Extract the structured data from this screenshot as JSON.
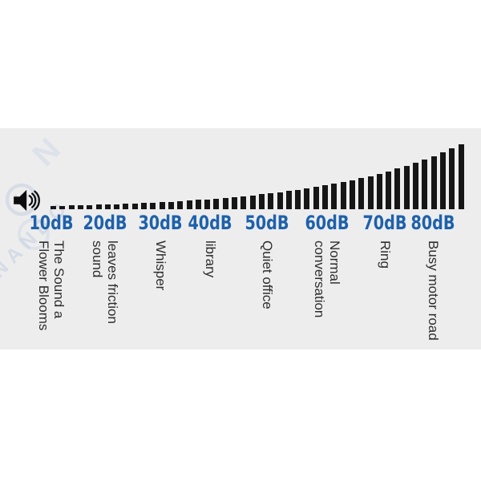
{
  "colors": {
    "page_bg": "#ffffff",
    "band_bg": "#ededee",
    "bar": "#161616",
    "db_label": "#1e61ab",
    "description_text": "#2d2d2d",
    "watermark": "#c9d3e2"
  },
  "watermark": {
    "text": "NANBO",
    "monogram": "W",
    "stray_letter": "N"
  },
  "chart_data": {
    "type": "bar",
    "title": "",
    "xlabel": "",
    "ylabel": "",
    "unit": "dB",
    "x_range_db": [
      10,
      80
    ],
    "x_tick_labels": [
      "10dB",
      "20dB",
      "30dB",
      "40dB",
      "50dB",
      "60dB",
      "70dB",
      "80dB"
    ],
    "tick_descriptions": [
      [
        "The Sound a",
        "Flower Blooms"
      ],
      [
        "leaves friction",
        "sound"
      ],
      [
        "Whisper"
      ],
      [
        "library"
      ],
      [
        "Quiet office"
      ],
      [
        "Normal",
        "conversation"
      ],
      [
        "Ring"
      ],
      [
        "Busy motor road"
      ]
    ],
    "bar_count": 46,
    "values": [
      4,
      4.3,
      4.6,
      4.9,
      5.2,
      5.6,
      6,
      6.4,
      6.8,
      7.3,
      7.8,
      8.3,
      8.9,
      9.5,
      10.2,
      10.9,
      11.7,
      12.5,
      13.3,
      14.2,
      15.2,
      16.3,
      17.4,
      18.6,
      19.9,
      21.3,
      22.7,
      24.3,
      26,
      27.8,
      29.7,
      31.7,
      33.9,
      36.3,
      38.8,
      41.5,
      44.3,
      47.4,
      50.7,
      54.1,
      57.9,
      61.9,
      66.2,
      70.7,
      75.6,
      80.8
    ],
    "legend": null,
    "grid": false
  }
}
